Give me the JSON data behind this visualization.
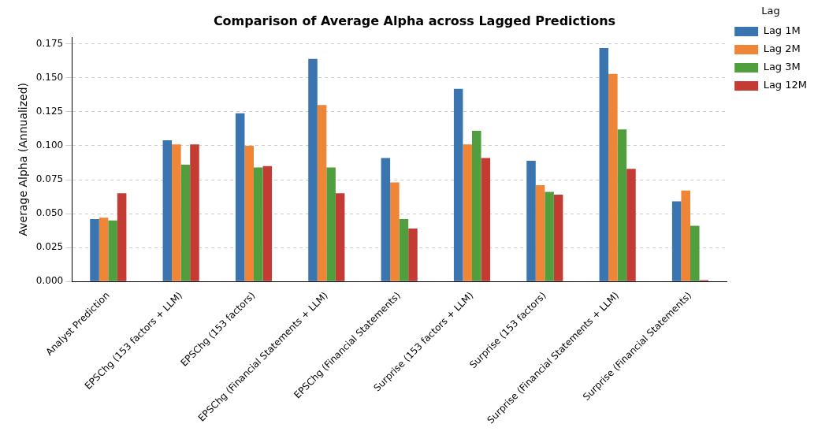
{
  "chart_data": {
    "type": "bar",
    "title": "Comparison of Average Alpha across Lagged Predictions",
    "ylabel": "Average Alpha (Annualized)",
    "legend_title": "Lag",
    "categories": [
      "Analyst Prediction",
      "EPSChg (153 factors + LLM)",
      "EPSChg (153 factors)",
      "EPSChg (Financial Statements + LLM)",
      "EPSChg (Financial Statements)",
      "Surprise (153 factors + LLM)",
      "Surprise (153 factors)",
      "Surprise (Financial Statements + LLM)",
      "Surprise (Financial Statements)"
    ],
    "series": [
      {
        "name": "Lag 1M",
        "color": "#3a75af",
        "values": [
          0.046,
          0.104,
          0.124,
          0.164,
          0.091,
          0.142,
          0.089,
          0.172,
          0.059
        ]
      },
      {
        "name": "Lag 2M",
        "color": "#ef8536",
        "values": [
          0.047,
          0.101,
          0.1,
          0.13,
          0.073,
          0.101,
          0.071,
          0.153,
          0.067
        ]
      },
      {
        "name": "Lag 3M",
        "color": "#519e3e",
        "values": [
          0.045,
          0.086,
          0.084,
          0.084,
          0.046,
          0.111,
          0.066,
          0.112,
          0.041
        ]
      },
      {
        "name": "Lag 12M",
        "color": "#c43b34",
        "values": [
          0.065,
          0.101,
          0.085,
          0.065,
          0.039,
          0.091,
          0.064,
          0.083,
          0.001
        ]
      }
    ],
    "ylim": [
      0,
      0.18
    ],
    "yticks": [
      {
        "value": 0,
        "label": "0.000"
      },
      {
        "value": 0.025,
        "label": "0.025"
      },
      {
        "value": 0.05,
        "label": "0.050"
      },
      {
        "value": 0.075,
        "label": "0.075"
      },
      {
        "value": 0.1,
        "label": "0.100"
      },
      {
        "value": 0.125,
        "label": "0.125"
      },
      {
        "value": 0.15,
        "label": "0.150"
      },
      {
        "value": 0.175,
        "label": "0.175"
      }
    ],
    "grid": "y",
    "legend": "top right"
  }
}
